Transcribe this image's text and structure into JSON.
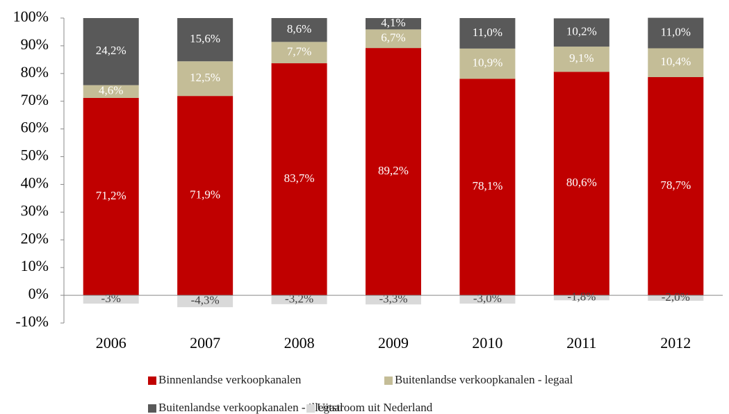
{
  "chart_data": {
    "type": "bar",
    "stacked": true,
    "categories": [
      "2006",
      "2007",
      "2008",
      "2009",
      "2010",
      "2011",
      "2012"
    ],
    "series": [
      {
        "name": "Binnenlandse verkoopkanalen",
        "color": "#c00000",
        "label_color": "#ffffff",
        "values": [
          71.2,
          71.9,
          83.7,
          89.2,
          78.1,
          80.6,
          78.7
        ],
        "value_labels": [
          "71,2%",
          "71,9%",
          "83,7%",
          "89,2%",
          "78,1%",
          "80,6%",
          "78,7%"
        ]
      },
      {
        "name": "Buitenlandse verkoopkanalen - legaal",
        "color": "#c4bd97",
        "label_color": "#ffffff",
        "values": [
          4.6,
          12.5,
          7.7,
          6.7,
          10.9,
          9.1,
          10.4
        ],
        "value_labels": [
          "4,6%",
          "12,5%",
          "7,7%",
          "6,7%",
          "10,9%",
          "9,1%",
          "10,4%"
        ]
      },
      {
        "name": "Buitenlandse verkoopkanalen - illegaal",
        "color": "#595959",
        "label_color": "#ffffff",
        "values": [
          24.2,
          15.6,
          8.6,
          4.1,
          11.0,
          10.2,
          11.0
        ],
        "value_labels": [
          "24,2%",
          "15,6%",
          "8,6%",
          "4,1%",
          "11,0%",
          "10,2%",
          "11,0%"
        ]
      },
      {
        "name": "Uitstroom uit Nederland",
        "color": "#d9d9d9",
        "label_color": "#404040",
        "values": [
          -3,
          -4.3,
          -3.2,
          -3.3,
          -3.0,
          -1.8,
          -2.0
        ],
        "value_labels": [
          "-3%",
          "-4,3%",
          "-3,2%",
          "-3,3%",
          "-3,0%",
          "-1,8%",
          "-2,0%"
        ]
      }
    ],
    "ylim": [
      -10,
      100
    ],
    "yticks": [
      {
        "value": -10,
        "label": "-10%"
      },
      {
        "value": 0,
        "label": "0%"
      },
      {
        "value": 10,
        "label": "10%"
      },
      {
        "value": 20,
        "label": "20%"
      },
      {
        "value": 30,
        "label": "30%"
      },
      {
        "value": 40,
        "label": "40%"
      },
      {
        "value": 50,
        "label": "50%"
      },
      {
        "value": 60,
        "label": "60%"
      },
      {
        "value": 70,
        "label": "70%"
      },
      {
        "value": 80,
        "label": "80%"
      },
      {
        "value": 90,
        "label": "90%"
      },
      {
        "value": 100,
        "label": "100%"
      }
    ],
    "grid": false,
    "legend": "bottom"
  }
}
